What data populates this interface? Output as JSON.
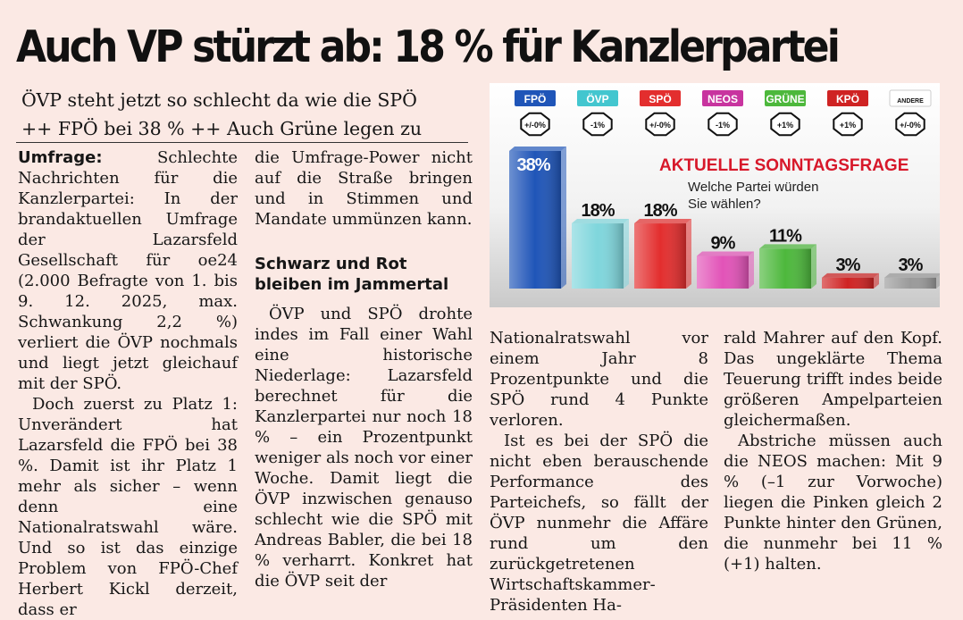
{
  "headline": "Auch VP stürzt ab: 18 % für Kanzlerpartei",
  "subhead": {
    "line1": "ÖVP steht jetzt so schlecht da wie die SPÖ",
    "line2": "++ FPÖ bei 38 % ++ Auch Grüne legen zu"
  },
  "article": {
    "kicker": "Umfrage:",
    "p1_rest": " Schlechte Nachrichten für die Kanzlerpartei: In der brandaktuellen Umfrage der Lazarsfeld Gesellschaft für oe24 (2.000 Befragte von 1. bis 9. 12. 2025, max. Schwankung 2,2 %) verliert die ÖVP nochmals und liegt jetzt gleichauf mit der SPÖ.",
    "p2": "Doch zuerst zu Platz 1: Unverändert hat Lazarsfeld die FPÖ bei 38 %. Damit ist ihr Platz 1 mehr als sicher – wenn denn eine Nationalratswahl wäre. Und so ist das einzige Problem von FPÖ-Chef Herbert Kickl derzeit, dass er",
    "p2_cont": "die Umfrage-Power nicht auf die Straße bringen und in Stimmen und Mandate ummünzen kann.",
    "subheading": "Schwarz und Rot bleiben im Jammertal",
    "p3": "ÖVP und SPÖ drohte indes im Fall einer Wahl eine historische Niederlage: Lazarsfeld berechnet für die Kanzlerpartei nur noch 18 % – ein Prozentpunkt weniger als noch vor einer Woche. Damit liegt die ÖVP inzwischen genauso schlecht wie die SPÖ mit Andreas Babler, die bei 18 % verharrt. Konkret hat die ÖVP seit der",
    "p3_cont": "Nationalratswahl vor einem Jahr 8 Prozentpunkte und die SPÖ rund 4 Punkte verloren.",
    "p4": "Ist es bei der SPÖ die nicht eben berauschende Performance des Parteichefs, so fällt der ÖVP nunmehr die Affäre rund um den zurückgetretenen Wirtschaftskammer-Präsidenten Ha-",
    "p4_cont": "rald Mahrer auf den Kopf. Das ungeklärte Thema Teuerung trifft indes beide größeren Ampelparteien gleichermaßen.",
    "p5": "Abstriche müssen auch die NEOS machen: Mit 9 % (–1 zur Vorwoche) liegen die Pinken gleich 2 Punkte hinter den Grünen, die nunmehr bei 11 % (+1) halten."
  },
  "chart_data": {
    "type": "bar",
    "title": "AKTUELLE SONNTAGSFRAGE",
    "subtitle_line1": "Welche Partei würden",
    "subtitle_line2": "Sie wählen?",
    "categories": [
      "FPÖ",
      "ÖVP",
      "SPÖ",
      "NEOS",
      "GRÜNE",
      "KPÖ",
      "ANDERE"
    ],
    "values": [
      38,
      18,
      18,
      9,
      11,
      3,
      3
    ],
    "value_labels": [
      "38%",
      "18%",
      "18%",
      "9%",
      "11%",
      "3%",
      "3%"
    ],
    "changes": [
      "+/-0%",
      "-1%",
      "+/-0%",
      "-1%",
      "+1%",
      "+1%",
      "+/-0%"
    ],
    "colors": [
      "#1f55b8",
      "#7fd6dc",
      "#e32e2e",
      "#e253b8",
      "#4db83c",
      "#cf2323",
      "#9a9a9a"
    ],
    "label_colors": [
      "#1f55b8",
      "#43c6cf",
      "#e32e2e",
      "#c8349f",
      "#4db83c",
      "#cf2323",
      "#ffffff"
    ],
    "label_text_colors": [
      "#ffffff",
      "#ffffff",
      "#ffffff",
      "#ffffff",
      "#ffffff",
      "#ffffff",
      "#111111"
    ],
    "ylim": [
      0,
      38
    ]
  }
}
